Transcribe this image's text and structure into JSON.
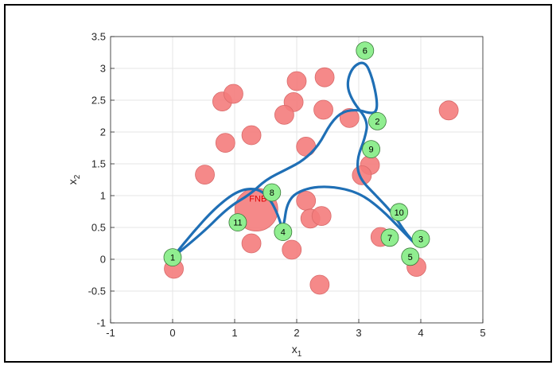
{
  "chart_data": {
    "type": "scatter",
    "xlabel": "x",
    "xlabel_sub": "1",
    "ylabel": "x",
    "ylabel_sub": "2",
    "xlim": [
      -1,
      5
    ],
    "ylim": [
      -1,
      3.5
    ],
    "xticks": [
      -1,
      0,
      1,
      2,
      3,
      4,
      5
    ],
    "yticks": [
      -1,
      -0.5,
      0,
      0.5,
      1,
      1.5,
      2,
      2.5,
      3,
      3.5
    ],
    "grid": true,
    "colors": {
      "obstacle_fill": "#f47c7c",
      "obstacle_stroke": "#d96a6a",
      "waypoint_fill": "#90ee90",
      "waypoint_stroke": "#3a7a3a",
      "path": "#1f6fb5",
      "fnb_text": "#e00000"
    },
    "obstacles": [
      {
        "x": 0.8,
        "y": 2.48
      },
      {
        "x": 0.98,
        "y": 2.6
      },
      {
        "x": 0.85,
        "y": 1.83
      },
      {
        "x": 1.27,
        "y": 1.95
      },
      {
        "x": 0.52,
        "y": 1.33
      },
      {
        "x": 2.0,
        "y": 2.8
      },
      {
        "x": 2.45,
        "y": 2.86
      },
      {
        "x": 1.95,
        "y": 2.47
      },
      {
        "x": 1.8,
        "y": 2.27
      },
      {
        "x": 2.43,
        "y": 2.35
      },
      {
        "x": 2.85,
        "y": 2.22
      },
      {
        "x": 2.15,
        "y": 1.77
      },
      {
        "x": 4.45,
        "y": 2.34
      },
      {
        "x": 3.18,
        "y": 1.48
      },
      {
        "x": 3.05,
        "y": 1.32
      },
      {
        "x": 2.15,
        "y": 0.92
      },
      {
        "x": 2.22,
        "y": 0.64
      },
      {
        "x": 2.4,
        "y": 0.68
      },
      {
        "x": 3.35,
        "y": 0.35
      },
      {
        "x": 1.27,
        "y": 0.25
      },
      {
        "x": 1.92,
        "y": 0.15
      },
      {
        "x": 3.93,
        "y": -0.12
      },
      {
        "x": 0.02,
        "y": -0.15
      },
      {
        "x": 2.37,
        "y": -0.4
      }
    ],
    "fnb": {
      "x": 1.35,
      "y": 0.78,
      "label": "FNB"
    },
    "waypoints": [
      {
        "label": "1",
        "x": 0.0,
        "y": 0.03
      },
      {
        "label": "2",
        "x": 3.3,
        "y": 2.17
      },
      {
        "label": "3",
        "x": 4.0,
        "y": 0.32
      },
      {
        "label": "4",
        "x": 1.78,
        "y": 0.43
      },
      {
        "label": "5",
        "x": 3.83,
        "y": 0.04
      },
      {
        "label": "6",
        "x": 3.1,
        "y": 3.28
      },
      {
        "label": "7",
        "x": 3.5,
        "y": 0.34
      },
      {
        "label": "8",
        "x": 1.6,
        "y": 1.05
      },
      {
        "label": "9",
        "x": 3.2,
        "y": 1.73
      },
      {
        "label": "10",
        "x": 3.65,
        "y": 0.74
      },
      {
        "label": "11",
        "x": 1.05,
        "y": 0.58
      }
    ],
    "path": [
      [
        0.0,
        0.03
      ],
      [
        0.45,
        0.38
      ],
      [
        0.9,
        0.82
      ],
      [
        1.25,
        1.02
      ],
      [
        1.5,
        1.25
      ],
      [
        1.85,
        1.42
      ],
      [
        2.1,
        1.55
      ],
      [
        2.35,
        1.78
      ],
      [
        2.55,
        2.15
      ],
      [
        2.75,
        2.33
      ],
      [
        3.0,
        2.35
      ],
      [
        3.15,
        2.3
      ],
      [
        3.28,
        2.3
      ],
      [
        3.3,
        2.48
      ],
      [
        3.22,
        2.85
      ],
      [
        3.1,
        3.12
      ],
      [
        2.9,
        3.03
      ],
      [
        2.8,
        2.75
      ],
      [
        2.9,
        2.48
      ],
      [
        3.15,
        2.18
      ],
      [
        3.1,
        1.9
      ],
      [
        2.97,
        1.58
      ],
      [
        3.0,
        1.28
      ],
      [
        3.3,
        0.98
      ],
      [
        3.55,
        0.72
      ],
      [
        3.75,
        0.42
      ],
      [
        3.95,
        0.2
      ],
      [
        3.7,
        0.45
      ],
      [
        3.35,
        0.8
      ],
      [
        3.0,
        1.05
      ],
      [
        2.55,
        1.15
      ],
      [
        2.15,
        1.12
      ],
      [
        1.85,
        0.95
      ],
      [
        1.78,
        0.43
      ],
      [
        1.7,
        0.7
      ],
      [
        1.55,
        0.98
      ],
      [
        1.35,
        1.12
      ],
      [
        1.05,
        1.08
      ],
      [
        0.7,
        0.82
      ],
      [
        0.35,
        0.45
      ],
      [
        0.0,
        0.03
      ]
    ]
  }
}
